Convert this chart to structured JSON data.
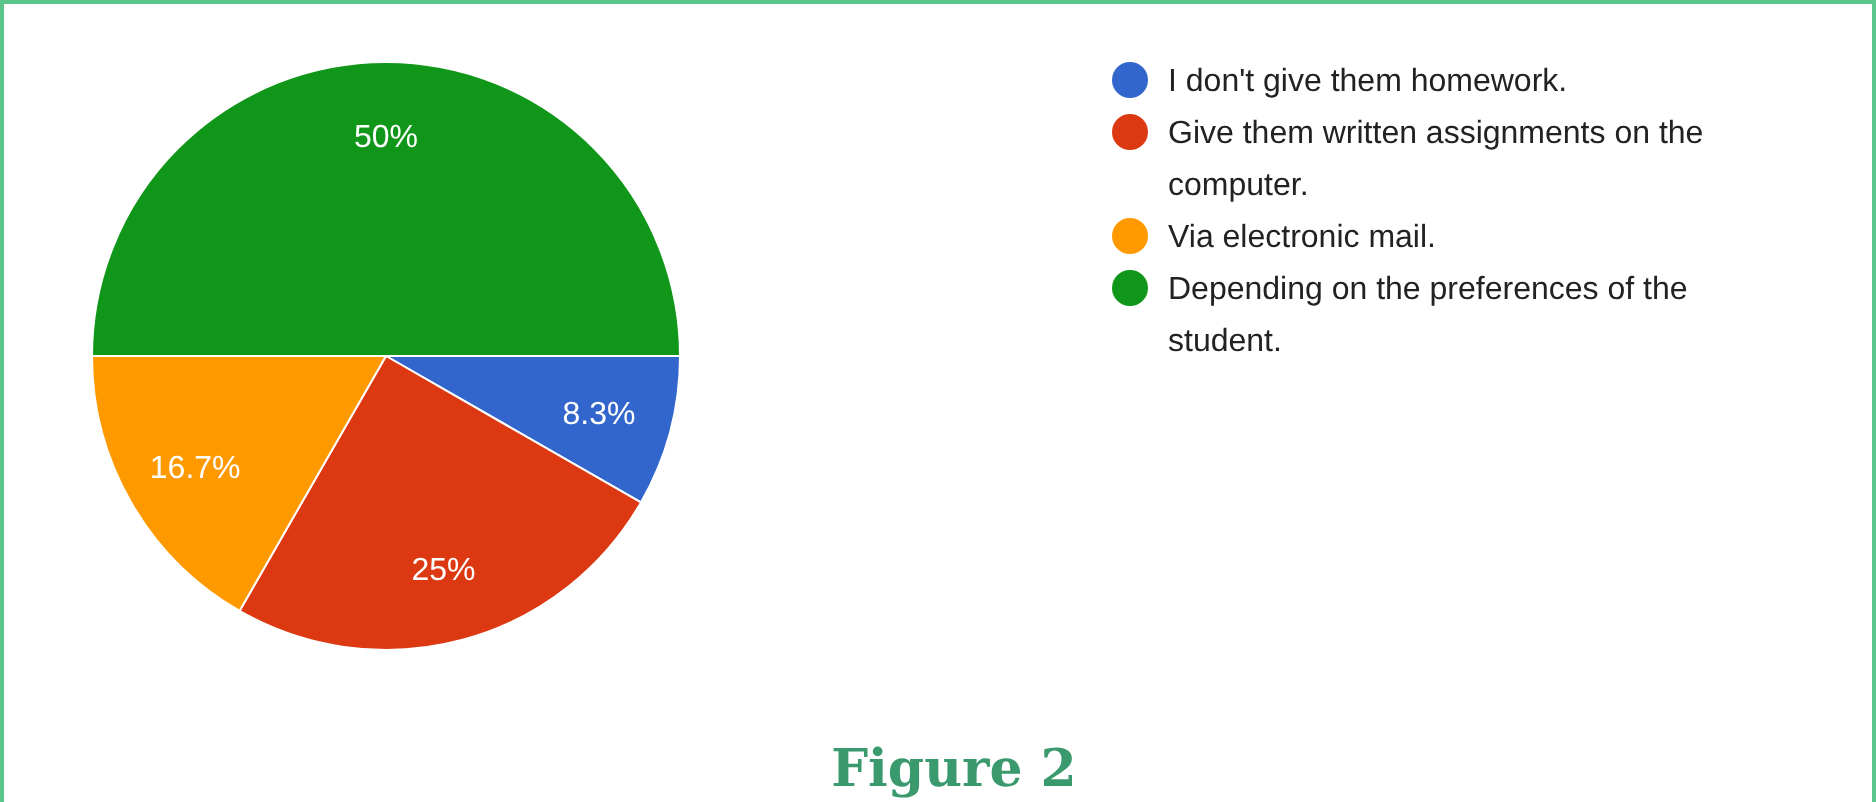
{
  "chart_data": {
    "type": "pie",
    "categories": [
      "I don't give them homework.",
      "Give them written assignments on the computer.",
      "Via electronic mail.",
      "Depending on the preferences of the student."
    ],
    "values": [
      8.3,
      25,
      16.7,
      50
    ],
    "colors": [
      "#3366cc",
      "#dc3912",
      "#ff9900",
      "#109618"
    ],
    "value_labels": [
      "8.3%",
      "25%",
      "16.7%",
      "50%"
    ],
    "legend": "right",
    "annotations": [
      "Figure 2"
    ]
  }
}
